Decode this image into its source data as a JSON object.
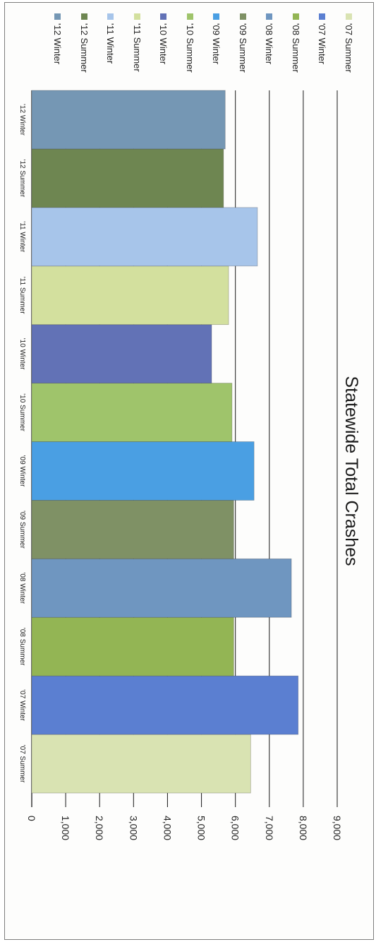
{
  "chart_data": {
    "type": "bar",
    "title": "Statewide Total Crashes",
    "xlabel": "",
    "ylabel": "",
    "ylim": [
      0,
      9000
    ],
    "yticks": [
      "0",
      "1,000",
      "2,000",
      "3,000",
      "4,000",
      "5,000",
      "6,000",
      "7,000",
      "8,000",
      "9,000"
    ],
    "categories": [
      "'07 Summer",
      "'07 Winter",
      "'08 Summer",
      "'08 Winter",
      "'09 Summer",
      "'09 Winter",
      "'10 Summer",
      "'10 Winter",
      "'11 Summer",
      "'11 Winter",
      "'12 Summer",
      "'12 Winter"
    ],
    "values": [
      6450,
      7850,
      5950,
      7650,
      5950,
      6550,
      5900,
      5300,
      5800,
      6650,
      5650,
      5700
    ],
    "colors": [
      "#d9e3b2",
      "#5b7fd1",
      "#93b554",
      "#6f96c0",
      "#7f9165",
      "#4a9fe3",
      "#9fc46b",
      "#6272b6",
      "#d3e09e",
      "#a7c5ea",
      "#6e8651",
      "#7597b4"
    ],
    "legend": [
      "'07 Summer",
      "'07 Winter",
      "'08 Summer",
      "'08 Winter",
      "'09 Summer",
      "'09 Winter",
      "'10 Summer",
      "'10 Winter",
      "'11 Summer",
      "'11 Winter",
      "'12 Summer",
      "'12 Winter"
    ],
    "legend_position": "right",
    "grid": true
  }
}
